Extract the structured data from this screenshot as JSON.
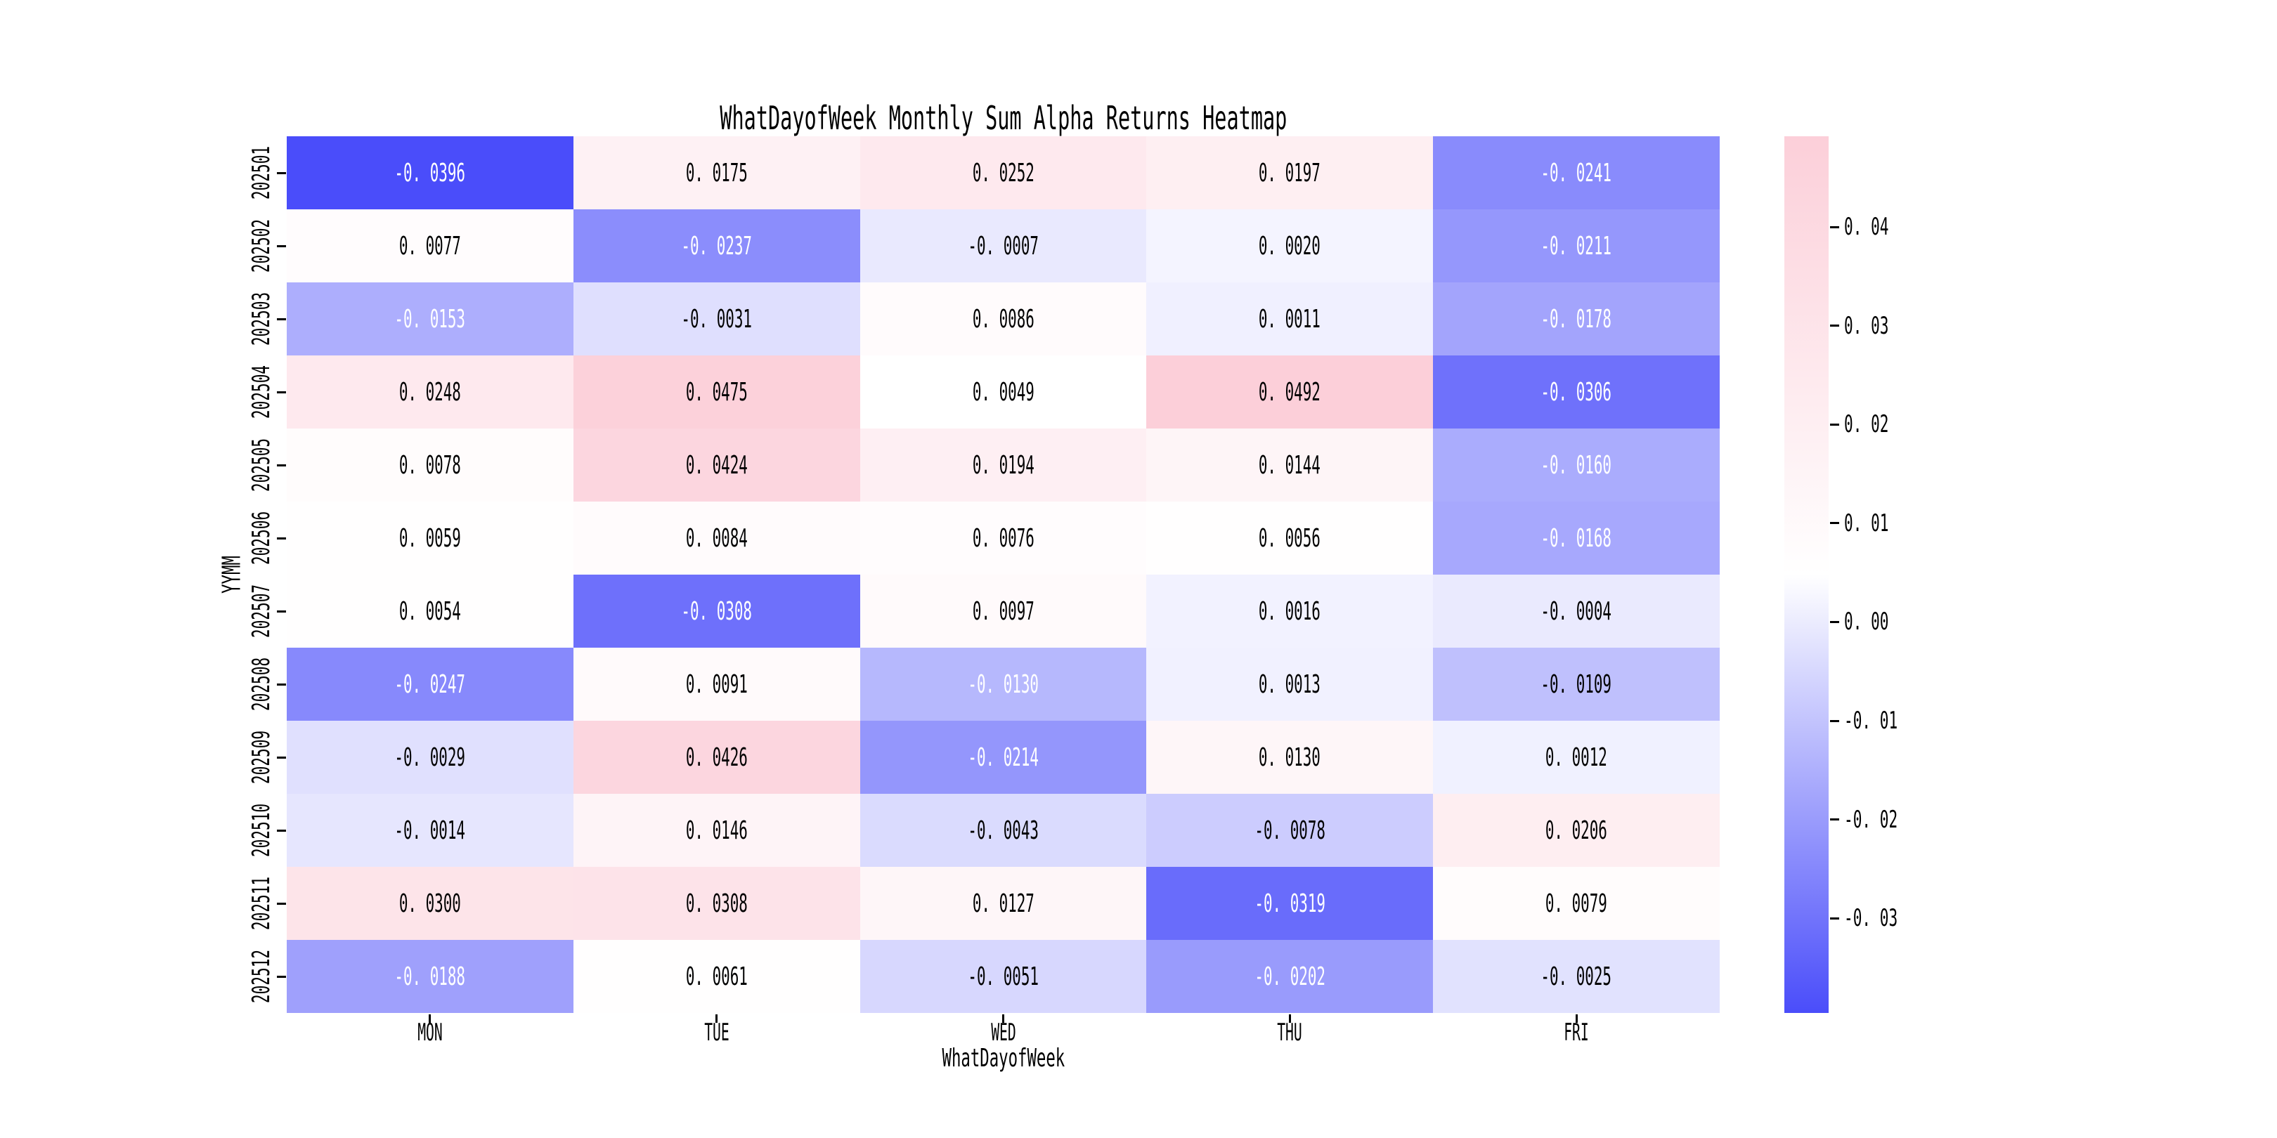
{
  "figure": {
    "background_color": "#ffffff",
    "text_color": "#000000"
  },
  "chart_data": {
    "type": "heatmap",
    "title": "WhatDayofWeek Monthly Sum Alpha Returns Heatmap",
    "xlabel": "WhatDayofWeek",
    "ylabel": "YYMM",
    "x_tick_labels": [
      "MON",
      "TUE",
      "WED",
      "THU",
      "FRI"
    ],
    "y_tick_labels": [
      "202501",
      "202502",
      "202503",
      "202504",
      "202505",
      "202506",
      "202507",
      "202508",
      "202509",
      "202510",
      "202511",
      "202512"
    ],
    "values": [
      [
        -0.0396,
        0.0175,
        0.0252,
        0.0197,
        -0.0241
      ],
      [
        0.0077,
        -0.0237,
        -0.0007,
        0.002,
        -0.0211
      ],
      [
        -0.0153,
        -0.0031,
        0.0086,
        0.0011,
        -0.0178
      ],
      [
        0.0248,
        0.0475,
        0.0049,
        0.0492,
        -0.0306
      ],
      [
        0.0078,
        0.0424,
        0.0194,
        0.0144,
        -0.016
      ],
      [
        0.0059,
        0.0084,
        0.0076,
        0.0056,
        -0.0168
      ],
      [
        0.0054,
        -0.0308,
        0.0097,
        0.0016,
        -0.0004
      ],
      [
        -0.0247,
        0.0091,
        -0.013,
        0.0013,
        -0.0109
      ],
      [
        -0.0029,
        0.0426,
        -0.0214,
        0.013,
        0.0012
      ],
      [
        -0.0014,
        0.0146,
        -0.0043,
        -0.0078,
        0.0206
      ],
      [
        0.03,
        0.0308,
        0.0127,
        -0.0319,
        0.0079
      ],
      [
        -0.0188,
        0.0061,
        -0.0051,
        -0.0202,
        -0.0025
      ]
    ],
    "vmin": -0.0396,
    "vmax": 0.0492,
    "annotation_decimals": 4,
    "annotation_colors": {
      "dark": "#000000",
      "light": "#FFFFFF"
    },
    "colorbar": {
      "tick_values": [
        0.04,
        0.03,
        0.02,
        0.01,
        0.0,
        -0.01,
        -0.02,
        -0.03
      ],
      "tick_decimals": 2,
      "color_min": "#4A4DFA",
      "color_mid": "#FFFFFF",
      "color_max": "#FCCFD9"
    },
    "legend": "none",
    "grid": "off"
  }
}
